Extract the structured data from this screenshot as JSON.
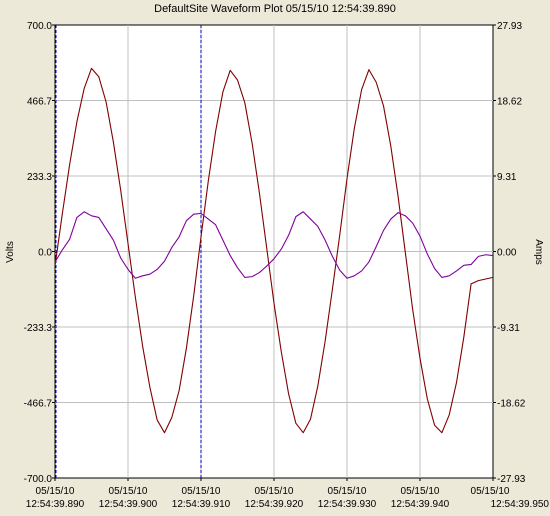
{
  "colors": {
    "background": "#ece9d8",
    "plot_background": "#ffffff",
    "grid": "#c0c0c0",
    "voltage_trace": "#800000",
    "current_trace": "#8000a0",
    "cursor": "#0000cc"
  },
  "chart_data": {
    "type": "line",
    "title": "DefaultSite  Waveform Plot  05/15/10  12:54:39.890",
    "ylabel": "Volts",
    "y2label": "Amps",
    "xlim": [
      "12:54:39.890",
      "12:54:39.950"
    ],
    "ylim": [
      -700.0,
      700.0
    ],
    "y2lim": [
      -27.93,
      27.93
    ],
    "grid": true,
    "y_ticks": [
      "700.0",
      "466.7",
      "233.3",
      "0.0",
      "-233.3",
      "-466.7",
      "-700.0"
    ],
    "y2_ticks": [
      "27.93",
      "18.62",
      "9.31",
      "0.00",
      "-9.31",
      "-18.62",
      "-27.93"
    ],
    "x_ticks": [
      {
        "date": "05/15/10",
        "time": "12:54:39.890"
      },
      {
        "date": "05/15/10",
        "time": "12:54:39.900"
      },
      {
        "date": "05/15/10",
        "time": "12:54:39.910"
      },
      {
        "date": "05/15/10",
        "time": "12:54:39.920"
      },
      {
        "date": "05/15/10",
        "time": "12:54:39.930"
      },
      {
        "date": "05/15/10",
        "time": "12:54:39.940"
      },
      {
        "date": "05/15/10",
        "time": "12:54:39.950"
      }
    ],
    "cursors_ms": [
      0.0,
      20.0
    ],
    "series": [
      {
        "axis": "left",
        "color": "#800000",
        "x_ms": [
          0,
          1,
          2,
          3,
          4,
          5,
          6,
          7,
          8,
          9,
          10,
          11,
          12,
          13,
          14,
          15,
          16,
          17,
          18,
          19,
          20,
          21,
          22,
          23,
          24,
          25,
          26,
          27,
          28,
          29,
          30,
          31,
          32,
          33,
          34,
          35,
          36,
          37,
          38,
          39,
          40,
          41,
          42,
          43,
          44,
          45,
          46,
          47,
          48,
          49,
          50,
          51,
          52,
          53,
          54,
          55,
          56,
          57,
          58,
          59,
          60
        ],
        "values": [
          -45,
          116,
          268,
          401,
          504,
          566,
          540,
          462,
          338,
          189,
          25,
          -140,
          -292,
          -420,
          -521,
          -560,
          -513,
          -430,
          -299,
          -137,
          45,
          218,
          371,
          493,
          560,
          530,
          460,
          335,
          181,
          11,
          -160,
          -310,
          -440,
          -531,
          -560,
          -518,
          -416,
          -278,
          -117,
          50,
          225,
          380,
          500,
          562,
          523,
          450,
          326,
          170,
          -5,
          -180,
          -330,
          -455,
          -537,
          -560,
          -505,
          -405,
          -265,
          -100,
          -90,
          -85,
          -80
        ]
      },
      {
        "axis": "right",
        "color": "#8000a0",
        "x_ms": [
          0,
          1,
          2,
          3,
          4,
          5,
          6,
          7,
          8,
          9,
          10,
          11,
          12,
          13,
          14,
          15,
          16,
          17,
          18,
          19,
          20,
          21,
          22,
          23,
          24,
          25,
          26,
          27,
          28,
          29,
          30,
          31,
          32,
          33,
          34,
          35,
          36,
          37,
          38,
          39,
          40,
          41,
          42,
          43,
          44,
          45,
          46,
          47,
          48,
          49,
          50,
          51,
          52,
          53,
          54,
          55,
          56,
          57,
          58,
          59,
          60
        ],
        "values": [
          -1.3,
          0.2,
          1.5,
          4.2,
          4.9,
          4.4,
          4.2,
          2.8,
          1.4,
          -0.8,
          -2.2,
          -3.3,
          -3.0,
          -2.8,
          -2.2,
          -1.2,
          0.5,
          1.8,
          3.8,
          4.6,
          4.7,
          4.0,
          3.3,
          1.4,
          -0.5,
          -2.0,
          -3.2,
          -3.1,
          -2.6,
          -1.8,
          -0.9,
          0.3,
          2.0,
          4.3,
          4.9,
          4.0,
          3.1,
          1.4,
          -0.6,
          -2.3,
          -3.3,
          -3.0,
          -2.4,
          -1.3,
          0.6,
          2.6,
          4.0,
          4.8,
          4.4,
          3.5,
          1.9,
          -0.3,
          -2.1,
          -3.2,
          -3.0,
          -2.4,
          -1.7,
          -1.6,
          -0.6,
          -0.4,
          -0.5
        ]
      }
    ]
  }
}
